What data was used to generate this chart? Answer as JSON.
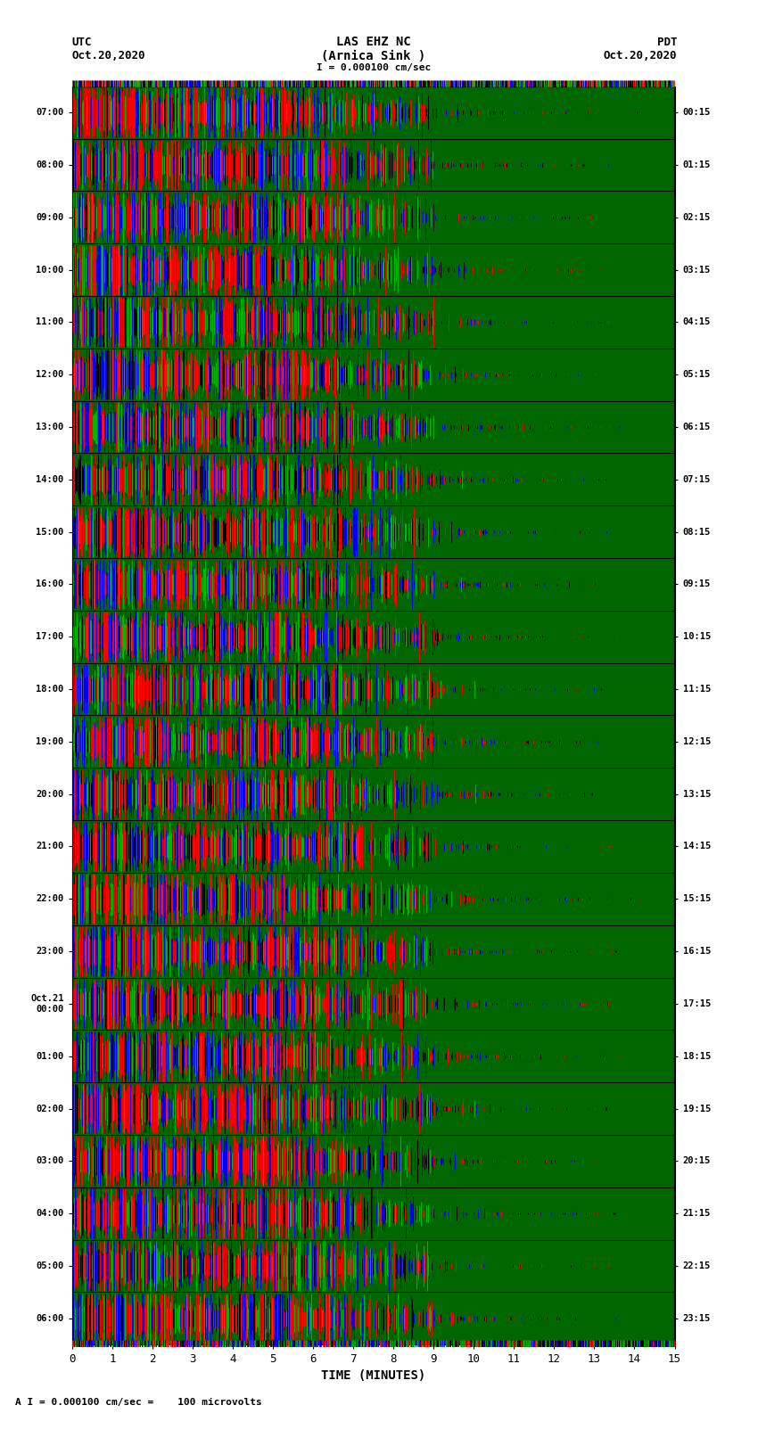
{
  "title_line1": "LAS EHZ NC",
  "title_line2": "(Arnica Sink )",
  "scale_label": "I = 0.000100 cm/sec",
  "footer_label": "A I = 0.000100 cm/sec =    100 microvolts",
  "utc_label": "UTC",
  "utc_date": "Oct.20,2020",
  "pdt_label": "PDT",
  "pdt_date": "Oct.20,2020",
  "left_yticks": [
    "07:00",
    "08:00",
    "09:00",
    "10:00",
    "11:00",
    "12:00",
    "13:00",
    "14:00",
    "15:00",
    "16:00",
    "17:00",
    "18:00",
    "19:00",
    "20:00",
    "21:00",
    "22:00",
    "23:00",
    "Oct.21\n00:00",
    "01:00",
    "02:00",
    "03:00",
    "04:00",
    "05:00",
    "06:00"
  ],
  "right_yticks": [
    "00:15",
    "01:15",
    "02:15",
    "03:15",
    "04:15",
    "05:15",
    "06:15",
    "07:15",
    "08:15",
    "09:15",
    "10:15",
    "11:15",
    "12:15",
    "13:15",
    "14:15",
    "15:15",
    "16:15",
    "17:15",
    "18:15",
    "19:15",
    "20:15",
    "21:15",
    "22:15",
    "23:15"
  ],
  "xlabel": "TIME (MINUTES)",
  "xlim": [
    0,
    15
  ],
  "xticks": [
    0,
    1,
    2,
    3,
    4,
    5,
    6,
    7,
    8,
    9,
    10,
    11,
    12,
    13,
    14,
    15
  ],
  "bg_color": "#006600",
  "fig_width": 8.5,
  "fig_height": 16.13,
  "n_rows": 24,
  "n_cols": 680,
  "seed": 42
}
